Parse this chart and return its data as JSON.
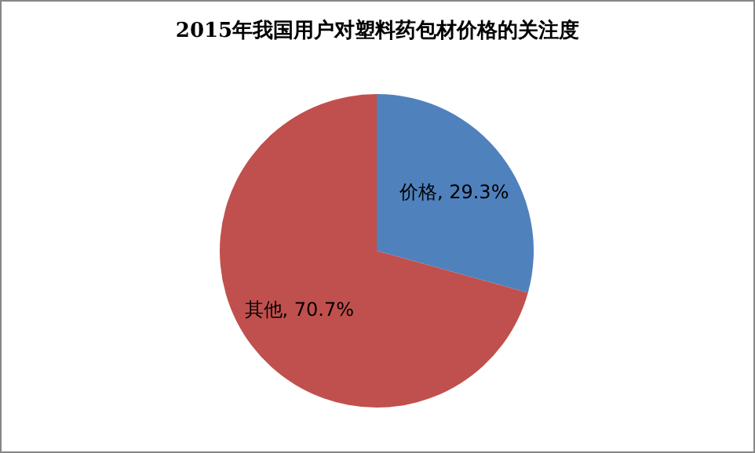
{
  "chart_data": {
    "type": "pie",
    "title": "2015年我国用户对塑料药包材价格的关注度",
    "categories": [
      "价格",
      "其他"
    ],
    "values": [
      29.3,
      70.7
    ],
    "colors": [
      "#4f81bd",
      "#c0504d"
    ],
    "value_labels": [
      ", 29.3%",
      ", 70.7%"
    ]
  }
}
